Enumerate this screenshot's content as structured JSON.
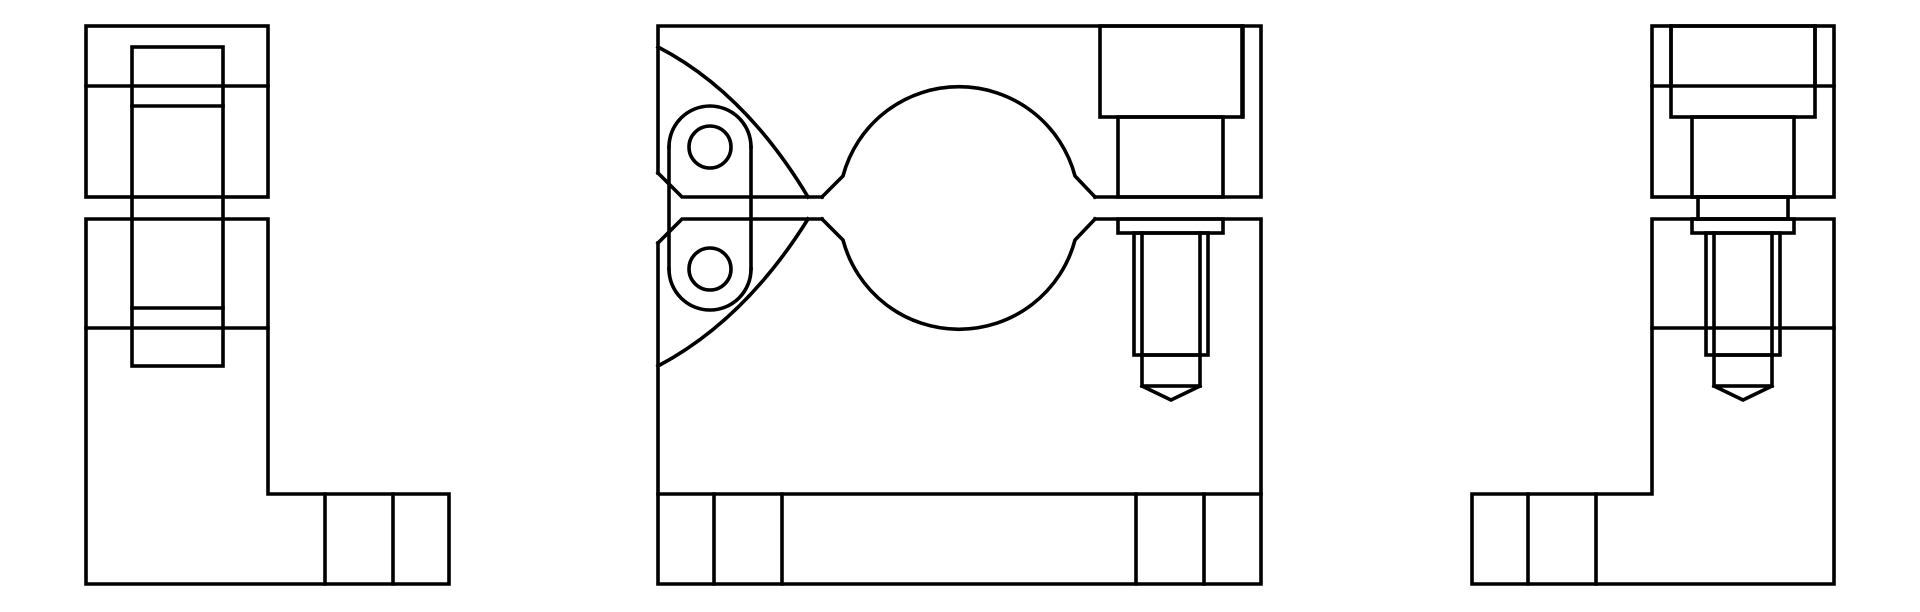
{
  "drawing": {
    "type": "orthographic-technical-drawing",
    "views": [
      "left-view",
      "front-view",
      "right-view"
    ],
    "line_color": "#000000",
    "background_color": "#ffffff"
  }
}
